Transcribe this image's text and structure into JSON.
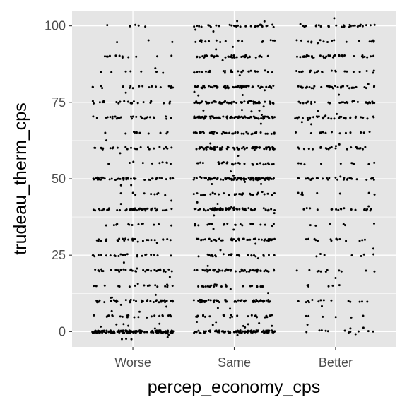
{
  "chart_data": {
    "type": "scatter",
    "subtype": "jitter-strip",
    "xlabel": "percep_economy_cps",
    "ylabel": "trudeau_therm_cps",
    "categories": [
      "Worse",
      "Same",
      "Better"
    ],
    "ylim": [
      -5,
      105
    ],
    "y_ticks": [
      0,
      25,
      50,
      75,
      100
    ],
    "y_tick_labels": [
      "0",
      "25",
      "50",
      "75",
      "100"
    ],
    "grid": true,
    "panel_background": "#e5e5e5",
    "grid_color": "#ffffff",
    "point_color": "#000000",
    "jitter_x": 0.4,
    "jitter_y": 0.4,
    "levels": [
      0,
      5,
      10,
      15,
      20,
      25,
      30,
      35,
      40,
      45,
      50,
      55,
      60,
      65,
      70,
      75,
      80,
      85,
      90,
      95,
      100
    ],
    "series": [
      {
        "category": "Worse",
        "counts_by_level": [
          150,
          25,
          45,
          18,
          40,
          25,
          30,
          14,
          45,
          10,
          50,
          10,
          30,
          12,
          28,
          22,
          20,
          8,
          12,
          3,
          5
        ]
      },
      {
        "category": "Same",
        "counts_by_level": [
          90,
          30,
          60,
          25,
          55,
          28,
          45,
          22,
          65,
          30,
          90,
          28,
          75,
          40,
          85,
          65,
          60,
          30,
          45,
          18,
          35
        ]
      },
      {
        "category": "Better",
        "counts_by_level": [
          15,
          6,
          15,
          6,
          12,
          8,
          14,
          6,
          20,
          8,
          30,
          10,
          25,
          14,
          40,
          30,
          35,
          22,
          40,
          18,
          30
        ]
      }
    ]
  }
}
